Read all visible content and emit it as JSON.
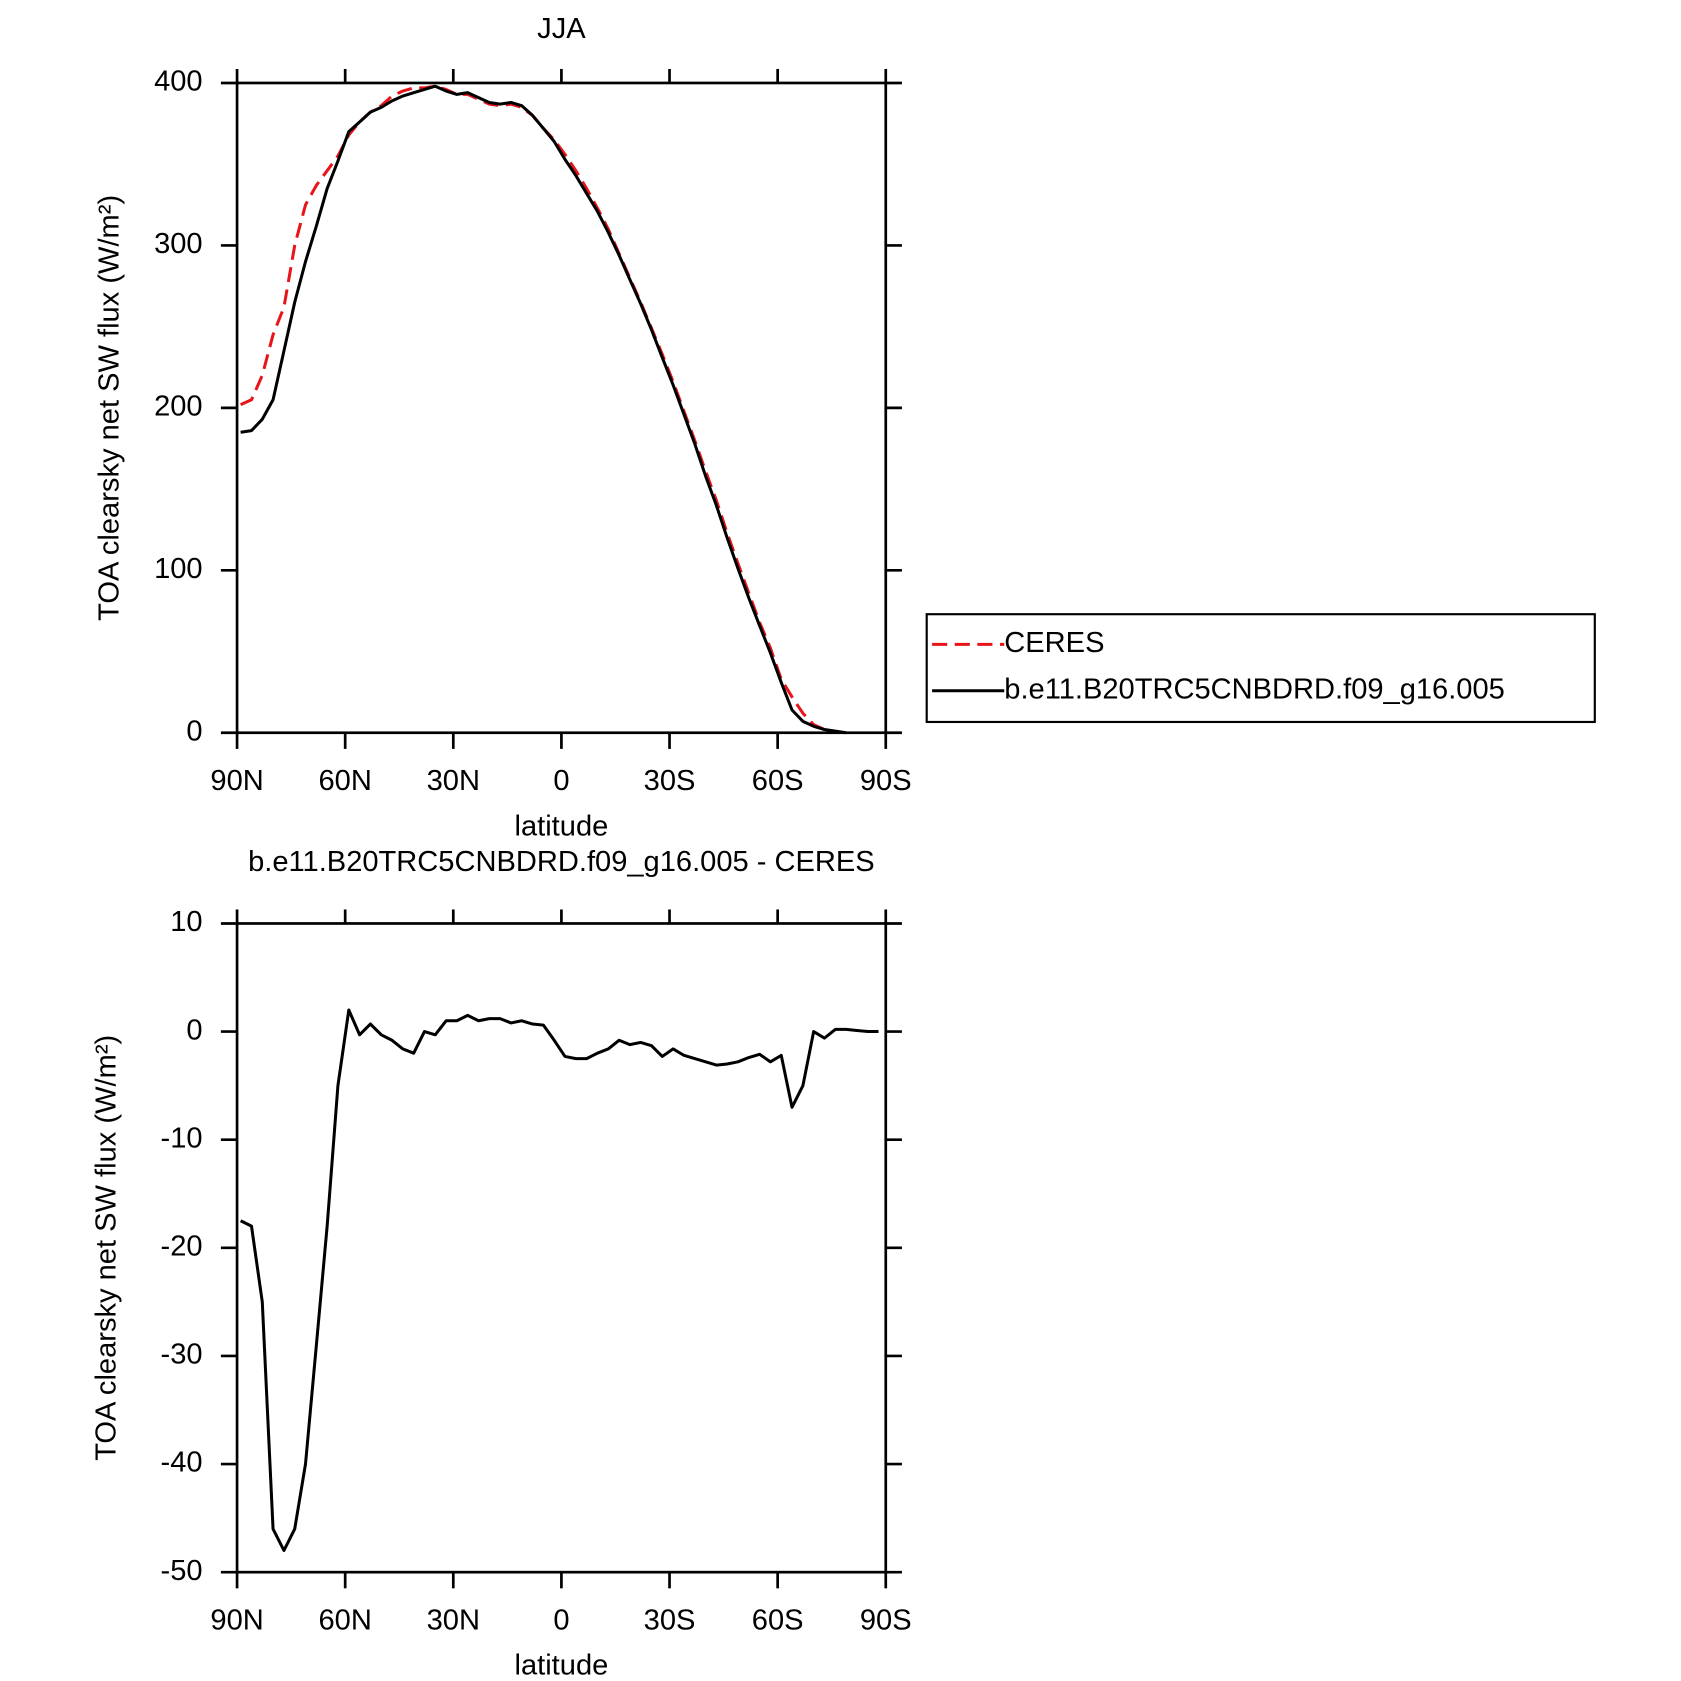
{
  "chart_data": [
    {
      "type": "line",
      "title": "JJA",
      "xlabel": "latitude",
      "ylabel": "TOA clearsky net SW flux (W/m²)",
      "x": [
        89,
        86,
        83,
        80,
        77,
        74,
        71,
        68,
        65,
        62,
        59,
        56,
        53,
        50,
        47,
        44,
        41,
        38,
        35,
        32,
        29,
        26,
        23,
        20,
        17,
        14,
        11,
        8,
        5,
        2,
        -1,
        -4,
        -7,
        -10,
        -13,
        -16,
        -19,
        -22,
        -25,
        -28,
        -31,
        -34,
        -37,
        -40,
        -43,
        -46,
        -49,
        -52,
        -55,
        -58,
        -61,
        -64,
        -67,
        -70,
        -73,
        -76,
        -79,
        -82,
        -85,
        -88
      ],
      "series": [
        {
          "name": "CERES",
          "color": "#e8141a",
          "style": "dashed",
          "values": [
            202,
            205,
            220,
            245,
            262,
            300,
            325,
            337,
            346,
            355,
            368,
            376,
            382,
            386,
            392,
            395,
            397,
            397,
            398,
            396,
            393,
            393,
            390,
            387,
            386,
            387,
            385,
            380,
            372,
            365,
            356,
            346,
            335,
            323,
            310,
            295,
            280,
            265,
            249,
            233,
            216,
            198,
            180,
            161,
            143,
            123,
            104,
            86,
            68,
            52,
            33,
            22,
            12,
            5,
            2,
            null,
            null,
            null,
            null,
            null
          ]
        },
        {
          "name": "b.e11.B20TRC5CNBDRD.f09_g16.005",
          "color": "#000000",
          "style": "solid",
          "values": [
            185,
            186,
            193,
            205,
            235,
            265,
            290,
            312,
            335,
            352,
            370,
            376,
            382,
            385,
            389,
            392,
            394,
            396,
            398,
            395,
            393,
            394,
            391,
            388,
            387,
            388,
            386,
            380,
            372,
            364,
            353,
            343,
            332,
            321,
            308,
            294,
            279,
            264,
            248,
            231,
            214,
            196,
            178,
            158,
            140,
            120,
            101,
            83,
            66,
            49,
            31,
            14,
            7,
            4,
            2,
            1,
            0,
            null,
            null,
            null
          ]
        }
      ],
      "xlim": [
        90,
        -90
      ],
      "xticks": [
        {
          "value": 90,
          "label": "90N"
        },
        {
          "value": 60,
          "label": "60N"
        },
        {
          "value": 30,
          "label": "30N"
        },
        0,
        {
          "value": -30,
          "label": "30S"
        },
        {
          "value": -60,
          "label": "60S"
        },
        {
          "value": -90,
          "label": "90S"
        }
      ],
      "ylim": [
        0,
        400
      ],
      "yticks": [
        0,
        100,
        200,
        300,
        400
      ],
      "legend": "right"
    },
    {
      "type": "line",
      "title": "b.e11.B20TRC5CNBDRD.f09_g16.005 - CERES",
      "xlabel": "latitude",
      "ylabel": "TOA clearsky net SW flux (W/m²)",
      "x": [
        89,
        86,
        83,
        80,
        77,
        74,
        71,
        68,
        65,
        62,
        59,
        56,
        53,
        50,
        47,
        44,
        41,
        38,
        35,
        32,
        29,
        26,
        23,
        20,
        17,
        14,
        11,
        8,
        5,
        2,
        -1,
        -4,
        -7,
        -10,
        -13,
        -16,
        -19,
        -22,
        -25,
        -28,
        -31,
        -34,
        -37,
        -40,
        -43,
        -46,
        -49,
        -52,
        -55,
        -58,
        -61,
        -64,
        -67,
        -70,
        -73,
        -76,
        -79,
        -82,
        -85,
        -88
      ],
      "color": "#000000",
      "values": [
        -17.5,
        -18,
        -25,
        -46,
        -48,
        -46,
        -40,
        -29,
        -18,
        -5,
        2,
        -0.3,
        0.7,
        -0.3,
        -0.8,
        -1.6,
        -2,
        0,
        -0.3,
        1,
        1,
        1.5,
        1,
        1.2,
        1.2,
        0.8,
        1,
        0.7,
        0.6,
        -0.8,
        -2.3,
        -2.5,
        -2.5,
        -2,
        -1.6,
        -0.8,
        -1.2,
        -1,
        -1.3,
        -2.3,
        -1.6,
        -2.2,
        -2.5,
        -2.8,
        -3.1,
        -3,
        -2.8,
        -2.4,
        -2.1,
        -2.8,
        -2.2,
        -7,
        -5,
        0,
        -0.6,
        0.2,
        0.2,
        0.1,
        0,
        0
      ],
      "xlim": [
        90,
        -90
      ],
      "xticks": [
        {
          "value": 90,
          "label": "90N"
        },
        {
          "value": 60,
          "label": "60N"
        },
        {
          "value": 30,
          "label": "30N"
        },
        0,
        {
          "value": -30,
          "label": "30S"
        },
        {
          "value": -60,
          "label": "60S"
        },
        {
          "value": -90,
          "label": "90S"
        }
      ],
      "ylim": [
        -50,
        10
      ],
      "yticks": [
        -50,
        -40,
        -30,
        -20,
        -10,
        0,
        10
      ]
    }
  ]
}
